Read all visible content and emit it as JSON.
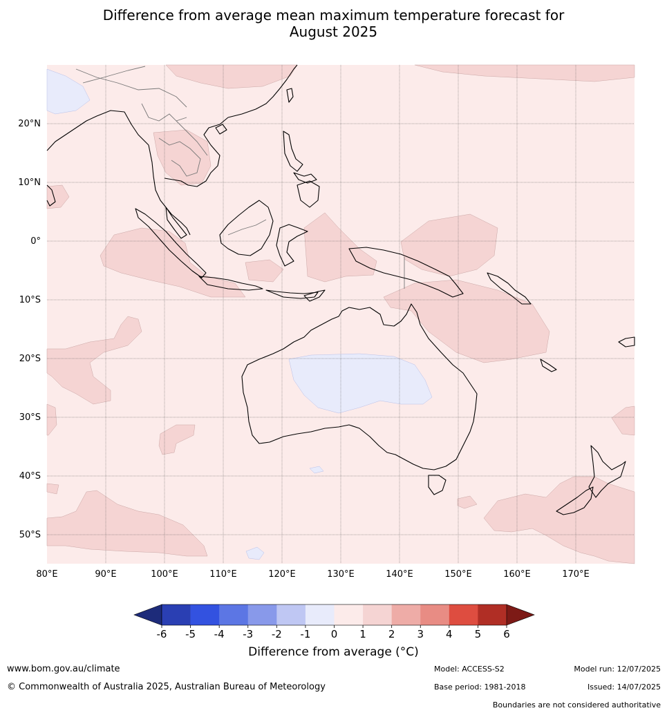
{
  "title_line1": "Difference from average mean maximum temperature forecast for",
  "title_line2": "August 2025",
  "lat_labels": [
    "20°N",
    "10°N",
    "0°",
    "10°S",
    "20°S",
    "30°S",
    "40°S",
    "50°S"
  ],
  "lon_labels": [
    "80°E",
    "90°E",
    "100°E",
    "110°E",
    "120°E",
    "130°E",
    "140°E",
    "150°E",
    "160°E",
    "170°E"
  ],
  "colorbar": {
    "ticks": [
      "-6",
      "-5",
      "-4",
      "-3",
      "-2",
      "-1",
      "0",
      "1",
      "2",
      "3",
      "4",
      "5",
      "6"
    ],
    "colors": [
      "#2a3fb3",
      "#3352e0",
      "#5c76e4",
      "#8899ea",
      "#bfc7f3",
      "#e8ebfb",
      "#fcebea",
      "#f5d4d3",
      "#eeaca7",
      "#e88c84",
      "#de4d40",
      "#b02e25"
    ],
    "under_color": "#1d2b7a",
    "over_color": "#7d1a16",
    "title": "Difference from average (°C)"
  },
  "footer": {
    "url": "www.bom.gov.au/climate",
    "copyright": "© Commonwealth of Australia 2025, Australian Bureau of Meteorology",
    "model": "Model: ACCESS-S2",
    "base_period": "Base period: 1981-2018",
    "model_run": "Model run: 12/07/2025",
    "issued": "Issued: 14/07/2025",
    "boundaries": "Boundaries are not considered authoritative"
  },
  "colors": {
    "background_anomaly": "#fcebea",
    "warm_anomaly": "#f5d4d3",
    "cool_anomaly": "#e8ebfb"
  }
}
